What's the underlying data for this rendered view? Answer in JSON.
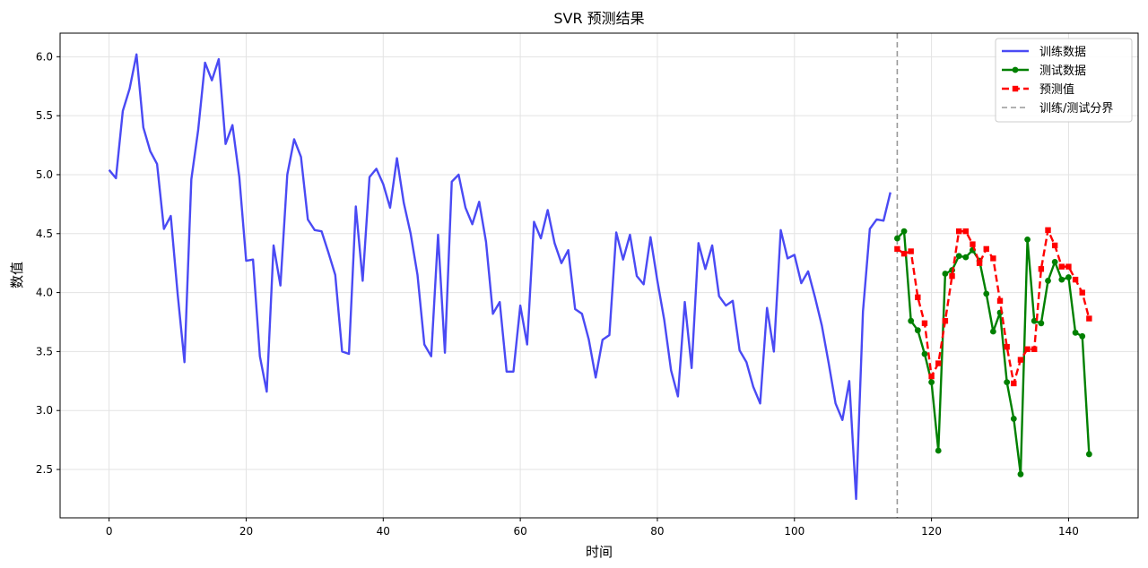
{
  "chart_data": {
    "type": "line",
    "title": "SVR 预测结果",
    "xlabel": "时间",
    "ylabel": "数值",
    "xlim": [
      -7.15,
      150.15
    ],
    "ylim": [
      2.09,
      6.2
    ],
    "xticks": [
      0,
      20,
      40,
      60,
      80,
      100,
      120,
      140
    ],
    "yticks": [
      2.5,
      3.0,
      3.5,
      4.0,
      4.5,
      5.0,
      5.5,
      6.0
    ],
    "grid": true,
    "legend_position": "top-right",
    "split_x": 115,
    "series": [
      {
        "name": "训练数据",
        "color": "#4a4af4",
        "style": "line",
        "x_start": 0,
        "values": [
          5.04,
          4.97,
          5.54,
          5.73,
          6.02,
          5.4,
          5.2,
          5.09,
          4.54,
          4.65,
          3.99,
          3.41,
          4.96,
          5.38,
          5.95,
          5.8,
          5.98,
          5.26,
          5.42,
          4.98,
          4.27,
          4.28,
          3.46,
          3.16,
          4.4,
          4.06,
          5.0,
          5.3,
          5.15,
          4.62,
          4.53,
          4.52,
          4.34,
          4.15,
          3.5,
          3.48,
          4.73,
          4.1,
          4.98,
          5.05,
          4.92,
          4.72,
          5.14,
          4.76,
          4.5,
          4.15,
          3.56,
          3.46,
          4.49,
          3.49,
          4.94,
          5.0,
          4.72,
          4.58,
          4.77,
          4.43,
          3.82,
          3.92,
          3.33,
          3.33,
          3.89,
          3.56,
          4.6,
          4.46,
          4.7,
          4.42,
          4.25,
          4.36,
          3.86,
          3.82,
          3.6,
          3.28,
          3.6,
          3.64,
          4.51,
          4.28,
          4.49,
          4.14,
          4.07,
          4.47,
          4.1,
          3.77,
          3.34,
          3.12,
          3.92,
          3.36,
          4.42,
          4.2,
          4.4,
          3.97,
          3.89,
          3.93,
          3.51,
          3.41,
          3.2,
          3.06,
          3.87,
          3.5,
          4.53,
          4.29,
          4.32,
          4.08,
          4.18,
          3.96,
          3.72,
          3.4,
          3.06,
          2.92,
          3.25,
          2.25,
          3.84,
          4.54,
          4.62,
          4.61,
          4.85
        ]
      },
      {
        "name": "测试数据",
        "color": "#008000",
        "style": "line-dots",
        "x_start": 115,
        "values": [
          4.46,
          4.52,
          3.76,
          3.68,
          3.48,
          3.24,
          2.66,
          4.16,
          4.19,
          4.31,
          4.3,
          4.36,
          4.27,
          3.99,
          3.67,
          3.83,
          3.24,
          2.93,
          2.46,
          4.45,
          3.76,
          3.74,
          4.1,
          4.26,
          4.11,
          4.13,
          3.66,
          3.63,
          2.63
        ]
      },
      {
        "name": "预测值",
        "color": "#ff0000",
        "style": "dashed-squares",
        "x_start": 115,
        "values": [
          4.37,
          4.33,
          4.35,
          3.96,
          3.74,
          3.29,
          3.4,
          3.76,
          4.14,
          4.52,
          4.52,
          4.41,
          4.25,
          4.37,
          4.29,
          3.93,
          3.54,
          3.23,
          3.43,
          3.52,
          3.52,
          4.2,
          4.53,
          4.4,
          4.22,
          4.22,
          4.11,
          4.0,
          3.78
        ]
      }
    ],
    "legend": [
      {
        "label": "训练数据",
        "color": "#4a4af4",
        "style": "line"
      },
      {
        "label": "测试数据",
        "color": "#008000",
        "style": "line-dots"
      },
      {
        "label": "预测值",
        "color": "#ff0000",
        "style": "dashed-squares"
      },
      {
        "label": "训练/测试分界",
        "color": "#999999",
        "style": "dashed"
      }
    ]
  }
}
